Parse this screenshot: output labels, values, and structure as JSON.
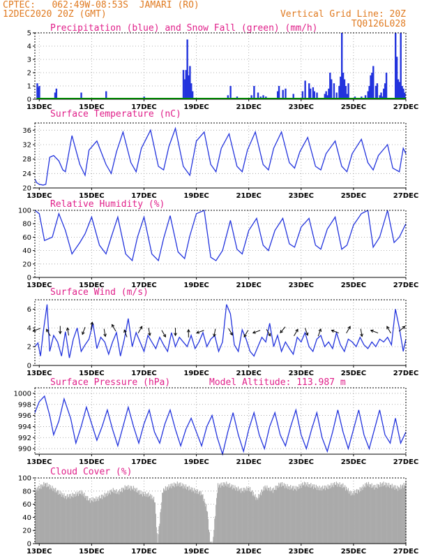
{
  "header": {
    "station": "CPTEC:   062:49W-08:53S  JAMARI (RO)",
    "run": "12DEC2020 20Z (GMT)",
    "grid_note": "Vertical Grid Line: 20Z",
    "model_code": "TQ0126L028"
  },
  "x_ticks": [
    "13DEC",
    "15DEC",
    "17DEC",
    "19DEC",
    "21DEC",
    "23DEC",
    "25DEC",
    "27DEC"
  ],
  "colors": {
    "line": "#2233dd",
    "snow": "#00aa00",
    "cloud": "#aaaaaa",
    "grid": "#999999",
    "title": "#e0208a",
    "header": "#e07a20"
  },
  "chart_data": [
    {
      "type": "bar",
      "title": "Precipitation (blue) and Snow Fall (green) (mm/h)",
      "ylim": [
        0,
        5
      ],
      "yticks": [
        0,
        1,
        2,
        3,
        4,
        5
      ],
      "x_range_days": [
        12.833,
        27.0
      ],
      "series": [
        {
          "name": "Precipitation",
          "color": "#2233dd",
          "x": [
            12.92,
            12.96,
            13.0,
            13.6,
            13.65,
            14.6,
            15.55,
            17.0,
            18.5,
            18.56,
            18.6,
            18.65,
            18.7,
            18.75,
            18.8,
            18.85,
            20.2,
            20.3,
            20.55,
            21.1,
            21.2,
            21.35,
            21.45,
            21.55,
            21.65,
            22.1,
            22.15,
            22.3,
            22.4,
            22.7,
            23.05,
            23.15,
            23.3,
            23.35,
            23.45,
            23.5,
            23.6,
            23.9,
            23.95,
            24.0,
            24.05,
            24.1,
            24.15,
            24.25,
            24.35,
            24.45,
            24.5,
            24.55,
            24.6,
            24.65,
            24.7,
            24.75,
            24.8,
            25.05,
            25.1,
            25.3,
            25.45,
            25.55,
            25.6,
            25.65,
            25.7,
            25.75,
            25.85,
            25.9,
            26.0,
            26.05,
            26.1,
            26.15,
            26.2,
            26.25,
            26.6,
            26.65,
            26.7,
            26.75,
            26.8,
            26.85,
            26.9,
            26.95
          ],
          "values": [
            1.2,
            0.9,
            1.0,
            0.5,
            0.8,
            0.5,
            0.6,
            0.2,
            2.2,
            1.5,
            2.2,
            4.5,
            1.8,
            2.5,
            1.2,
            0.6,
            0.3,
            1.0,
            0.2,
            0.3,
            1.0,
            0.5,
            0.2,
            0.3,
            0.2,
            0.6,
            1.0,
            0.7,
            0.8,
            0.4,
            0.6,
            1.4,
            1.2,
            0.8,
            0.9,
            0.6,
            0.5,
            0.4,
            0.6,
            0.3,
            0.8,
            2.0,
            1.5,
            1.2,
            0.5,
            1.0,
            1.7,
            5.0,
            2.0,
            1.5,
            1.0,
            0.4,
            1.2,
            0.2,
            0.1,
            0.2,
            0.3,
            0.6,
            1.0,
            1.8,
            2.0,
            2.5,
            1.0,
            1.2,
            0.3,
            0.5,
            0.2,
            0.8,
            1.2,
            2.0,
            5.0,
            3.2,
            1.5,
            1.3,
            5.0,
            1.0,
            0.8,
            0.5
          ]
        },
        {
          "name": "Snow Fall",
          "color": "#00aa00",
          "x": [
            12.9,
            27.0
          ],
          "values": [
            0.05,
            0.05
          ]
        }
      ]
    },
    {
      "type": "line",
      "title": "Surface Temperature (nC)",
      "ylim": [
        20,
        38
      ],
      "yticks": [
        20,
        24,
        28,
        32,
        36
      ],
      "x": [
        12.833,
        12.9,
        13.0,
        13.15,
        13.25,
        13.4,
        13.55,
        13.75,
        13.9,
        14.0,
        14.25,
        14.55,
        14.75,
        14.9,
        15.2,
        15.55,
        15.75,
        15.95,
        16.2,
        16.5,
        16.7,
        16.9,
        17.25,
        17.55,
        17.75,
        17.95,
        18.2,
        18.5,
        18.75,
        19.0,
        19.3,
        19.55,
        19.75,
        19.95,
        20.25,
        20.55,
        20.75,
        20.95,
        21.25,
        21.55,
        21.75,
        21.95,
        22.25,
        22.55,
        22.75,
        22.95,
        23.25,
        23.55,
        23.75,
        23.95,
        24.3,
        24.55,
        24.75,
        24.95,
        25.3,
        25.55,
        25.75,
        25.95,
        26.3,
        26.5,
        26.75,
        26.9,
        27.0
      ],
      "y": [
        22.5,
        21.5,
        21.0,
        20.8,
        21.0,
        28.5,
        29.0,
        27.5,
        25.0,
        24.5,
        34.5,
        26.5,
        23.5,
        30.5,
        33.0,
        26.5,
        24.0,
        30.0,
        35.5,
        27.0,
        24.5,
        31.0,
        36.0,
        26.0,
        25.0,
        31.5,
        36.5,
        26.0,
        23.5,
        33.0,
        35.5,
        26.5,
        24.5,
        31.0,
        35.0,
        26.0,
        24.5,
        30.5,
        35.5,
        26.5,
        25.0,
        31.0,
        35.5,
        27.0,
        25.5,
        30.0,
        34.0,
        26.0,
        25.0,
        29.5,
        33.0,
        26.0,
        24.5,
        29.5,
        33.5,
        27.0,
        25.0,
        29.0,
        32.0,
        25.5,
        24.5,
        31.0,
        29.5
      ]
    },
    {
      "type": "line",
      "title": "Relative Humidity (%)",
      "ylim": [
        0,
        100
      ],
      "yticks": [
        0,
        20,
        40,
        60,
        80,
        100
      ],
      "x": [
        12.833,
        13.0,
        13.2,
        13.5,
        13.75,
        14.0,
        14.25,
        14.55,
        14.75,
        15.0,
        15.3,
        15.55,
        15.75,
        16.0,
        16.3,
        16.55,
        16.75,
        17.0,
        17.3,
        17.55,
        17.75,
        18.0,
        18.3,
        18.55,
        18.75,
        19.0,
        19.3,
        19.55,
        19.75,
        20.0,
        20.3,
        20.55,
        20.75,
        21.0,
        21.3,
        21.55,
        21.75,
        22.0,
        22.3,
        22.55,
        22.75,
        23.0,
        23.3,
        23.55,
        23.75,
        24.0,
        24.3,
        24.55,
        24.75,
        25.0,
        25.3,
        25.55,
        25.75,
        26.0,
        26.3,
        26.55,
        26.75,
        27.0
      ],
      "y": [
        100,
        95,
        55,
        60,
        95,
        70,
        35,
        52,
        65,
        90,
        48,
        35,
        60,
        90,
        35,
        25,
        60,
        90,
        35,
        25,
        58,
        92,
        38,
        28,
        62,
        95,
        100,
        30,
        25,
        40,
        85,
        42,
        35,
        70,
        88,
        48,
        40,
        70,
        88,
        50,
        45,
        75,
        88,
        48,
        42,
        72,
        90,
        42,
        48,
        78,
        95,
        100,
        45,
        60,
        100,
        52,
        60,
        80
      ]
    },
    {
      "type": "line",
      "title": "Surface Wind (m/s)",
      "ylim": [
        0,
        7
      ],
      "yticks": [
        0,
        2,
        4,
        6
      ],
      "x": [
        12.833,
        12.95,
        13.05,
        13.15,
        13.3,
        13.4,
        13.55,
        13.7,
        13.85,
        14.0,
        14.15,
        14.3,
        14.45,
        14.6,
        14.75,
        14.9,
        15.05,
        15.2,
        15.35,
        15.5,
        15.65,
        15.8,
        15.95,
        16.1,
        16.25,
        16.4,
        16.55,
        16.7,
        16.85,
        17.0,
        17.15,
        17.3,
        17.45,
        17.6,
        17.75,
        17.9,
        18.05,
        18.2,
        18.35,
        18.5,
        18.65,
        18.8,
        18.95,
        19.1,
        19.25,
        19.4,
        19.55,
        19.7,
        19.85,
        20.0,
        20.15,
        20.3,
        20.45,
        20.6,
        20.75,
        20.9,
        21.05,
        21.2,
        21.35,
        21.5,
        21.65,
        21.8,
        21.95,
        22.1,
        22.25,
        22.4,
        22.55,
        22.7,
        22.85,
        23.0,
        23.15,
        23.3,
        23.45,
        23.6,
        23.75,
        23.9,
        24.05,
        24.2,
        24.35,
        24.5,
        24.65,
        24.8,
        24.95,
        25.1,
        25.25,
        25.4,
        25.55,
        25.7,
        25.85,
        26.0,
        26.15,
        26.3,
        26.45,
        26.6,
        26.75,
        26.9,
        27.0
      ],
      "y": [
        2.0,
        2.4,
        1.0,
        3.5,
        6.5,
        1.5,
        3.2,
        2.5,
        1.0,
        3.6,
        0.8,
        2.8,
        4.0,
        1.5,
        2.2,
        2.8,
        4.5,
        1.8,
        3.0,
        2.5,
        1.2,
        2.5,
        3.5,
        1.0,
        2.8,
        5.0,
        2.0,
        3.5,
        2.5,
        1.5,
        3.2,
        2.5,
        1.8,
        3.0,
        2.2,
        1.5,
        3.5,
        2.0,
        3.0,
        2.5,
        2.0,
        3.2,
        1.8,
        2.5,
        3.5,
        2.0,
        2.8,
        3.2,
        1.5,
        2.5,
        6.5,
        5.5,
        2.2,
        1.5,
        3.8,
        2.8,
        1.5,
        1.0,
        2.0,
        3.0,
        2.5,
        4.5,
        2.0,
        3.2,
        1.5,
        2.5,
        1.8,
        1.2,
        3.0,
        2.5,
        3.5,
        2.0,
        1.5,
        2.8,
        3.2,
        2.0,
        2.5,
        1.8,
        3.5,
        2.2,
        1.5,
        2.8,
        2.5,
        2.0,
        3.0,
        2.2,
        1.8,
        2.5,
        2.0,
        2.8,
        2.5,
        3.0,
        2.2,
        6.0,
        4.0,
        1.5,
        2.8
      ],
      "arrows": {
        "x": [
          12.9,
          13.35,
          13.8,
          14.1,
          14.7,
          15.0,
          15.5,
          15.85,
          16.3,
          16.85,
          17.2,
          17.75,
          18.2,
          18.7,
          19.15,
          19.7,
          20.3,
          20.9,
          21.3,
          21.75,
          22.3,
          22.8,
          23.2,
          23.7,
          24.3,
          24.8,
          25.3,
          25.8,
          26.35,
          26.85
        ],
        "y": [
          3.8,
          3.5,
          3.8,
          3.6,
          3.7,
          4.2,
          3.5,
          4.0,
          3.4,
          3.8,
          3.6,
          3.4,
          3.6,
          3.4,
          3.6,
          3.5,
          3.6,
          3.4,
          3.6,
          3.5,
          3.8,
          3.5,
          3.6,
          3.5,
          3.6,
          3.8,
          3.5,
          3.6,
          3.8,
          3.9
        ],
        "dir_deg": [
          200,
          120,
          270,
          100,
          250,
          80,
          280,
          120,
          110,
          60,
          280,
          300,
          270,
          90,
          200,
          260,
          300,
          240,
          200,
          300,
          230,
          60,
          290,
          70,
          160,
          60,
          280,
          160,
          120,
          40
        ]
      }
    },
    {
      "type": "line",
      "title": "Surface Pressure (hPa)",
      "annotation": "Model Altitude: 113.987  m",
      "ylim": [
        989,
        1001
      ],
      "yticks": [
        990,
        992,
        994,
        996,
        998,
        1000
      ],
      "x": [
        12.833,
        13.0,
        13.2,
        13.4,
        13.55,
        13.75,
        13.95,
        14.2,
        14.4,
        14.6,
        14.8,
        15.0,
        15.2,
        15.4,
        15.6,
        15.8,
        16.0,
        16.2,
        16.4,
        16.6,
        16.8,
        17.0,
        17.2,
        17.4,
        17.6,
        17.8,
        18.0,
        18.2,
        18.4,
        18.6,
        18.8,
        19.0,
        19.2,
        19.4,
        19.6,
        19.8,
        20.0,
        20.2,
        20.4,
        20.6,
        20.8,
        21.0,
        21.2,
        21.4,
        21.6,
        21.8,
        22.0,
        22.2,
        22.4,
        22.6,
        22.8,
        23.0,
        23.2,
        23.4,
        23.6,
        23.8,
        24.0,
        24.2,
        24.4,
        24.6,
        24.8,
        25.0,
        25.2,
        25.4,
        25.6,
        25.8,
        26.0,
        26.2,
        26.4,
        26.6,
        26.8,
        27.0
      ],
      "y": [
        996.5,
        998.5,
        999.5,
        996.0,
        992.5,
        995.0,
        999.0,
        995.5,
        991.0,
        994.0,
        997.5,
        994.5,
        991.5,
        994.0,
        997.0,
        993.5,
        990.5,
        994.0,
        997.5,
        994.0,
        991.0,
        994.5,
        997.0,
        993.0,
        991.0,
        994.5,
        997.0,
        993.5,
        990.5,
        993.5,
        995.5,
        993.0,
        990.5,
        994.0,
        996.0,
        992.0,
        989.0,
        993.0,
        996.5,
        992.5,
        989.5,
        993.5,
        996.5,
        992.5,
        990.0,
        994.0,
        996.5,
        992.5,
        990.5,
        994.0,
        997.0,
        992.5,
        990.0,
        993.5,
        996.5,
        992.0,
        989.5,
        993.0,
        997.0,
        993.0,
        990.0,
        993.5,
        997.0,
        992.5,
        990.0,
        993.5,
        997.0,
        992.5,
        991.0,
        995.5,
        991.0,
        993.0
      ]
    },
    {
      "type": "area",
      "title": "Cloud Cover (%)",
      "ylim": [
        0,
        100
      ],
      "yticks": [
        0,
        20,
        40,
        60,
        80,
        100
      ],
      "x": [
        12.833,
        13.2,
        13.5,
        13.8,
        14.0,
        14.3,
        14.6,
        14.9,
        15.2,
        15.5,
        15.8,
        16.0,
        16.3,
        16.6,
        16.9,
        17.2,
        17.4,
        17.5,
        17.7,
        18.0,
        18.3,
        18.6,
        18.9,
        19.2,
        19.4,
        19.5,
        19.6,
        19.8,
        20.1,
        20.4,
        20.7,
        21.0,
        21.3,
        21.6,
        21.9,
        22.2,
        22.5,
        22.8,
        23.1,
        23.4,
        23.7,
        24.0,
        24.3,
        24.6,
        24.9,
        25.2,
        25.5,
        25.8,
        26.1,
        26.4,
        26.7,
        27.0
      ],
      "y": [
        85,
        95,
        88,
        80,
        75,
        78,
        82,
        70,
        72,
        78,
        85,
        82,
        90,
        88,
        80,
        78,
        70,
        5,
        85,
        92,
        95,
        90,
        85,
        80,
        55,
        10,
        0,
        92,
        95,
        90,
        85,
        88,
        72,
        90,
        85,
        95,
        90,
        88,
        95,
        92,
        88,
        90,
        95,
        92,
        80,
        85,
        95,
        90,
        95,
        92,
        88,
        95
      ]
    }
  ]
}
